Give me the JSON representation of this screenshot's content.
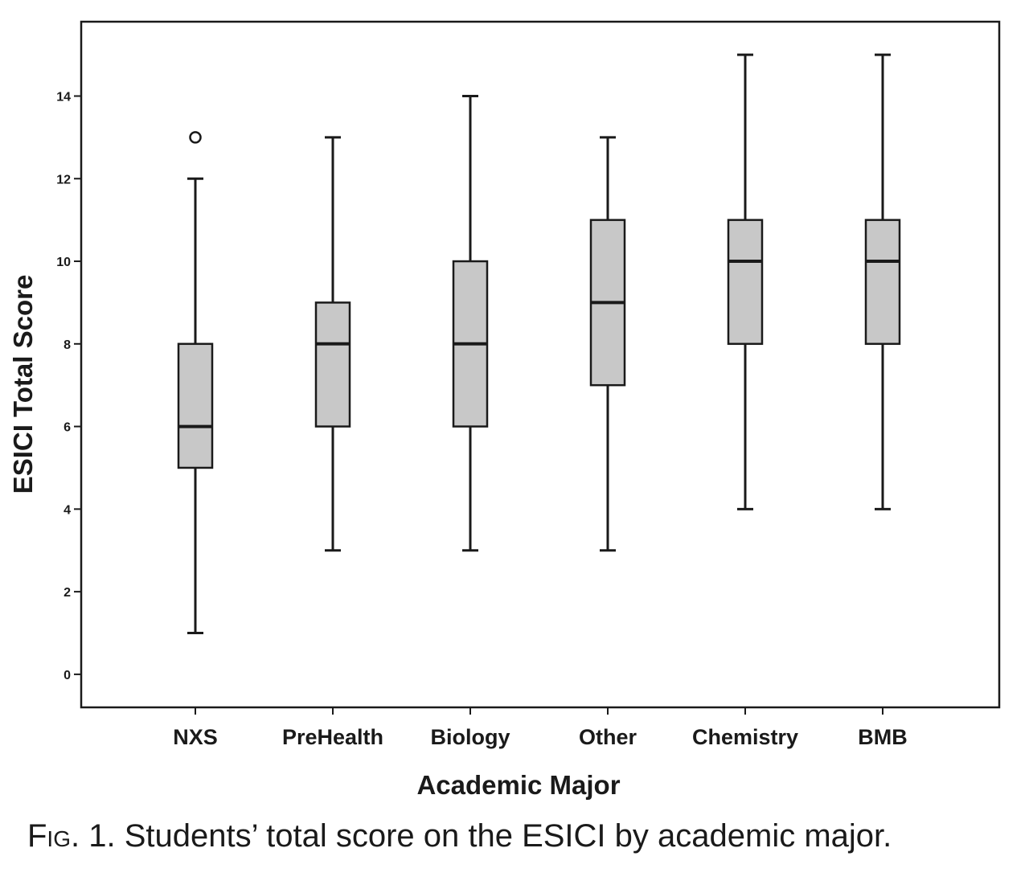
{
  "chart_data": {
    "type": "boxplot",
    "title": "",
    "xlabel": "Academic Major",
    "ylabel": "ESICI Total Score",
    "ylim": [
      -0.8,
      15.8
    ],
    "yticks": [
      0,
      2,
      4,
      6,
      8,
      10,
      12,
      14
    ],
    "categories": [
      "NXS",
      "PreHealth",
      "Biology",
      "Other",
      "Chemistry",
      "BMB"
    ],
    "boxes": [
      {
        "category": "NXS",
        "whisker_low": 1,
        "q1": 5,
        "median": 6,
        "q3": 8,
        "whisker_high": 12,
        "outliers": [
          13
        ]
      },
      {
        "category": "PreHealth",
        "whisker_low": 3,
        "q1": 6,
        "median": 8,
        "q3": 9,
        "whisker_high": 13,
        "outliers": []
      },
      {
        "category": "Biology",
        "whisker_low": 3,
        "q1": 6,
        "median": 8,
        "q3": 10,
        "whisker_high": 14,
        "outliers": []
      },
      {
        "category": "Other",
        "whisker_low": 3,
        "q1": 7,
        "median": 9,
        "q3": 11,
        "whisker_high": 13,
        "outliers": []
      },
      {
        "category": "Chemistry",
        "whisker_low": 4,
        "q1": 8,
        "median": 10,
        "q3": 11,
        "whisker_high": 15,
        "outliers": []
      },
      {
        "category": "BMB",
        "whisker_low": 4,
        "q1": 8,
        "median": 10,
        "q3": 11,
        "whisker_high": 15,
        "outliers": []
      }
    ],
    "box_fill": "#c8c8c8",
    "line_color": "#1a1a1a"
  },
  "caption": {
    "prefix": "Fig.",
    "text": " 1. Students’ total score on the ESICI by academic major."
  }
}
